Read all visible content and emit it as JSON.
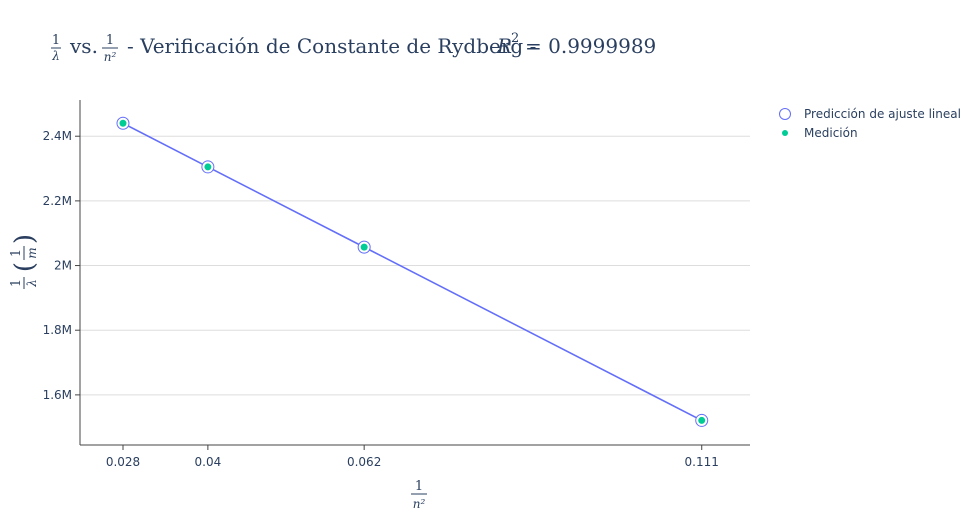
{
  "chart_data": {
    "type": "scatter",
    "title": {
      "prefix_frac_num": "1",
      "prefix_frac_den": "λ",
      "vs": "vs.",
      "second_frac_num": "1",
      "second_frac_den": "n²",
      "main": "- Verificación de Constante de Rydberg -",
      "r2_symbol": "R",
      "r2_exp": "2",
      "r2_value": "= 0.9999989"
    },
    "xlabel": {
      "num": "1",
      "den": "n²"
    },
    "ylabel": {
      "num": "1",
      "den": "λ",
      "unit_num": "1",
      "unit_den": "m"
    },
    "x_ticks": [
      {
        "value": 0.02778,
        "label": "0.028"
      },
      {
        "value": 0.04,
        "label": "0.04"
      },
      {
        "value": 0.0625,
        "label": "0.062"
      },
      {
        "value": 0.1111,
        "label": "0.111"
      }
    ],
    "y_ticks": [
      {
        "value": 1600000,
        "label": "1.6M"
      },
      {
        "value": 1800000,
        "label": "1.8M"
      },
      {
        "value": 2000000,
        "label": "2M"
      },
      {
        "value": 2200000,
        "label": "2.2M"
      },
      {
        "value": 2400000,
        "label": "2.4M"
      }
    ],
    "xlim": [
      0.02159,
      0.11805
    ],
    "ylim": [
      1445000,
      2512000
    ],
    "grid": {
      "x": false,
      "y": true
    },
    "legend_position": "top-right",
    "series": [
      {
        "name": "Predicción de ajuste lineal",
        "mode": "lines+markers",
        "marker": "open-circle",
        "color": "#636efa",
        "x": [
          0.02778,
          0.04,
          0.0625,
          0.1111
        ],
        "y": [
          2440000,
          2305000,
          2057000,
          1521000
        ]
      },
      {
        "name": "Medición",
        "mode": "markers",
        "marker": "filled-circle",
        "color": "#00cc96",
        "x": [
          0.02778,
          0.04,
          0.0625,
          0.1111
        ],
        "y": [
          2440000,
          2305000,
          2057000,
          1521000
        ]
      }
    ]
  }
}
